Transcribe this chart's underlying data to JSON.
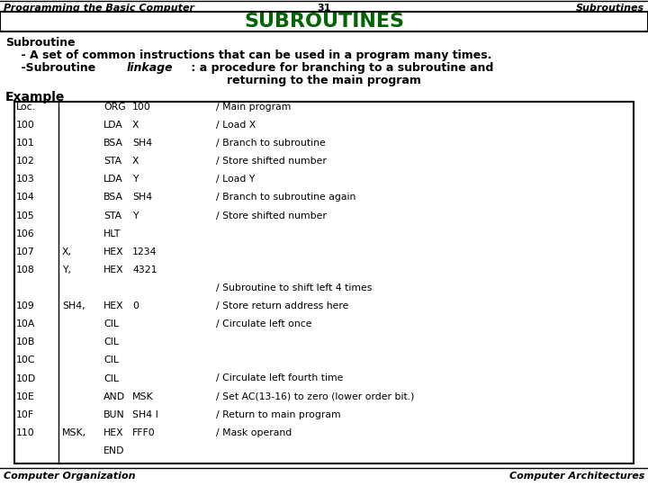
{
  "title_left": "Programming the Basic Computer",
  "title_center": "31",
  "title_right": "Subroutines",
  "header": "SUBROUTINES",
  "header_color": "#006400",
  "bg_color": "#ffffff",
  "footer_left": "Computer Organization",
  "footer_right": "Computer Architectures",
  "table_content": [
    [
      "Loc.",
      "",
      "ORG",
      "100",
      "/ Main program"
    ],
    [
      "100",
      "",
      "LDA",
      "X",
      "/ Load X"
    ],
    [
      "101",
      "",
      "BSA",
      "SH4",
      "/ Branch to subroutine"
    ],
    [
      "102",
      "",
      "STA",
      "X",
      "/ Store shifted number"
    ],
    [
      "103",
      "",
      "LDA",
      "Y",
      "/ Load Y"
    ],
    [
      "104",
      "",
      "BSA",
      "SH4",
      "/ Branch to subroutine again"
    ],
    [
      "105",
      "",
      "STA",
      "Y",
      "/ Store shifted number"
    ],
    [
      "106",
      "",
      "HLT",
      "",
      ""
    ],
    [
      "107",
      "X,",
      "HEX",
      "1234",
      ""
    ],
    [
      "108",
      "Y,",
      "HEX",
      "4321",
      ""
    ],
    [
      "",
      "",
      "",
      "",
      "/ Subroutine to shift left 4 times"
    ],
    [
      "109",
      "SH4,",
      "HEX",
      "0",
      "/ Store return address here"
    ],
    [
      "10A",
      "",
      "CIL",
      "",
      "/ Circulate left once"
    ],
    [
      "10B",
      "",
      "CIL",
      "",
      ""
    ],
    [
      "10C",
      "",
      "CIL",
      "",
      ""
    ],
    [
      "10D",
      "",
      "CIL",
      "",
      "/ Circulate left fourth time"
    ],
    [
      "10E",
      "",
      "AND",
      "MSK",
      "/ Set AC(13-16) to zero (lower order bit.)"
    ],
    [
      "10F",
      "",
      "BUN",
      "SH4 I",
      "/ Return to main program"
    ],
    [
      "110",
      "MSK,",
      "HEX",
      "FFF0",
      "/ Mask operand"
    ],
    [
      "",
      "",
      "END",
      "",
      ""
    ]
  ]
}
